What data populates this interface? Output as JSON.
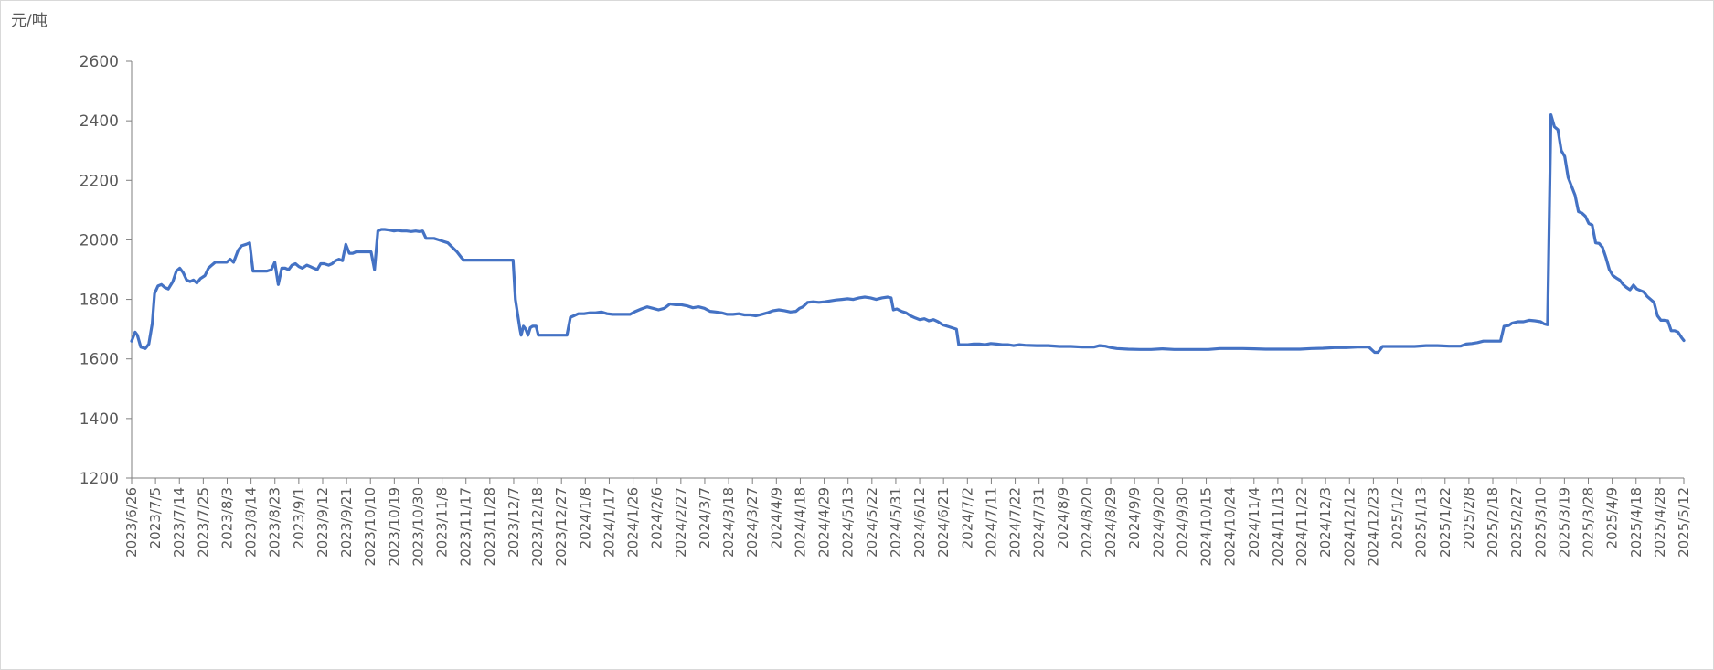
{
  "chart_data": {
    "type": "line",
    "title": "",
    "xlabel": "",
    "ylabel": "",
    "unit_label": "元/吨",
    "ylim": [
      1200,
      2600
    ],
    "yticks": [
      1200,
      1400,
      1600,
      1800,
      2000,
      2200,
      2400,
      2600
    ],
    "grid": false,
    "legend": "none",
    "x_ticks": [
      "2023/6/26",
      "2023/7/5",
      "2023/7/14",
      "2023/7/25",
      "2023/8/3",
      "2023/8/14",
      "2023/8/23",
      "2023/9/1",
      "2023/9/12",
      "2023/9/21",
      "2023/10/10",
      "2023/10/19",
      "2023/10/30",
      "2023/11/8",
      "2023/11/17",
      "2023/11/28",
      "2023/12/7",
      "2023/12/18",
      "2023/12/27",
      "2024/1/8",
      "2024/1/17",
      "2024/1/26",
      "2024/2/6",
      "2024/2/27",
      "2024/3/7",
      "2024/3/18",
      "2024/3/27",
      "2024/4/9",
      "2024/4/18",
      "2024/4/29",
      "2024/5/13",
      "2024/5/22",
      "2024/5/31",
      "2024/6/12",
      "2024/6/21",
      "2024/7/2",
      "2024/7/11",
      "2024/7/22",
      "2024/7/31",
      "2024/8/9",
      "2024/8/20",
      "2024/8/29",
      "2024/9/9",
      "2024/9/20",
      "2024/9/30",
      "2024/10/15",
      "2024/10/24",
      "2024/11/4",
      "2024/11/13",
      "2024/11/22",
      "2024/12/3",
      "2024/12/12",
      "2024/12/23",
      "2025/1/2",
      "2025/1/13",
      "2025/1/22",
      "2025/2/8",
      "2025/2/18",
      "2025/2/27",
      "2025/3/10",
      "2025/3/19",
      "2025/3/28",
      "2025/4/9",
      "2025/4/18",
      "2025/4/28",
      "2025/5/12"
    ],
    "series": [
      {
        "color": "#4472c4",
        "points": [
          [
            0,
            1660
          ],
          [
            0.3,
            1690
          ],
          [
            0.5,
            1680
          ],
          [
            0.8,
            1640
          ],
          [
            1.2,
            1635
          ],
          [
            1.5,
            1650
          ],
          [
            1.8,
            1720
          ],
          [
            2.0,
            1820
          ],
          [
            2.3,
            1845
          ],
          [
            2.6,
            1850
          ],
          [
            2.9,
            1840
          ],
          [
            3.2,
            1835
          ],
          [
            3.6,
            1860
          ],
          [
            3.9,
            1895
          ],
          [
            4.2,
            1905
          ],
          [
            4.5,
            1890
          ],
          [
            4.8,
            1865
          ],
          [
            5.1,
            1860
          ],
          [
            5.4,
            1865
          ],
          [
            5.7,
            1855
          ],
          [
            6.0,
            1870
          ],
          [
            6.4,
            1880
          ],
          [
            6.7,
            1905
          ],
          [
            7.0,
            1915
          ],
          [
            7.3,
            1925
          ],
          [
            7.8,
            1925
          ],
          [
            8.3,
            1925
          ],
          [
            8.6,
            1935
          ],
          [
            8.9,
            1925
          ],
          [
            9.3,
            1965
          ],
          [
            9.6,
            1980
          ],
          [
            10.0,
            1985
          ],
          [
            10.3,
            1990
          ],
          [
            10.6,
            1895
          ],
          [
            11.2,
            1895
          ],
          [
            11.8,
            1895
          ],
          [
            12.2,
            1900
          ],
          [
            12.5,
            1925
          ],
          [
            12.8,
            1850
          ],
          [
            13.1,
            1905
          ],
          [
            13.4,
            1905
          ],
          [
            13.7,
            1900
          ],
          [
            14.0,
            1915
          ],
          [
            14.3,
            1920
          ],
          [
            14.6,
            1910
          ],
          [
            14.9,
            1905
          ],
          [
            15.3,
            1915
          ],
          [
            15.6,
            1910
          ],
          [
            15.9,
            1905
          ],
          [
            16.2,
            1900
          ],
          [
            16.5,
            1920
          ],
          [
            16.8,
            1920
          ],
          [
            17.2,
            1915
          ],
          [
            17.5,
            1920
          ],
          [
            17.8,
            1930
          ],
          [
            18.1,
            1935
          ],
          [
            18.4,
            1930
          ],
          [
            18.7,
            1985
          ],
          [
            19.0,
            1955
          ],
          [
            19.3,
            1955
          ],
          [
            19.6,
            1960
          ],
          [
            20.0,
            1960
          ],
          [
            20.5,
            1960
          ],
          [
            20.9,
            1960
          ],
          [
            21.2,
            1900
          ],
          [
            21.5,
            2030
          ],
          [
            21.8,
            2035
          ],
          [
            22.1,
            2035
          ],
          [
            22.5,
            2033
          ],
          [
            22.9,
            2030
          ],
          [
            23.2,
            2032
          ],
          [
            23.6,
            2030
          ],
          [
            24.0,
            2030
          ],
          [
            24.4,
            2028
          ],
          [
            24.8,
            2030
          ],
          [
            25.1,
            2028
          ],
          [
            25.4,
            2030
          ],
          [
            25.7,
            2005
          ],
          [
            26.0,
            2005
          ],
          [
            26.4,
            2005
          ],
          [
            26.8,
            2000
          ],
          [
            27.2,
            1995
          ],
          [
            27.6,
            1990
          ],
          [
            28.0,
            1975
          ],
          [
            28.4,
            1960
          ],
          [
            28.8,
            1940
          ],
          [
            29.0,
            1932
          ],
          [
            29.5,
            1932
          ],
          [
            30.0,
            1932
          ],
          [
            31.0,
            1932
          ],
          [
            32.0,
            1932
          ],
          [
            33.0,
            1932
          ],
          [
            33.3,
            1932
          ],
          [
            33.5,
            1800
          ],
          [
            33.7,
            1750
          ],
          [
            33.9,
            1700
          ],
          [
            34.0,
            1680
          ],
          [
            34.2,
            1710
          ],
          [
            34.4,
            1700
          ],
          [
            34.6,
            1680
          ],
          [
            34.8,
            1705
          ],
          [
            35.0,
            1710
          ],
          [
            35.3,
            1710
          ],
          [
            35.5,
            1680
          ],
          [
            36.0,
            1680
          ],
          [
            36.5,
            1680
          ],
          [
            37.0,
            1680
          ],
          [
            37.5,
            1680
          ],
          [
            38.0,
            1680
          ],
          [
            38.3,
            1740
          ],
          [
            38.6,
            1745
          ],
          [
            39.0,
            1752
          ],
          [
            39.5,
            1752
          ],
          [
            40.0,
            1755
          ],
          [
            40.5,
            1755
          ],
          [
            41.0,
            1758
          ],
          [
            41.5,
            1752
          ],
          [
            42.0,
            1750
          ],
          [
            42.5,
            1750
          ],
          [
            43.0,
            1750
          ],
          [
            43.5,
            1750
          ],
          [
            44.0,
            1760
          ],
          [
            44.5,
            1768
          ],
          [
            45.0,
            1775
          ],
          [
            45.5,
            1770
          ],
          [
            46.0,
            1765
          ],
          [
            46.5,
            1770
          ],
          [
            47.0,
            1785
          ],
          [
            47.5,
            1782
          ],
          [
            48.0,
            1782
          ],
          [
            48.5,
            1778
          ],
          [
            49.0,
            1772
          ],
          [
            49.5,
            1775
          ],
          [
            50.0,
            1770
          ],
          [
            50.5,
            1760
          ],
          [
            51.0,
            1758
          ],
          [
            51.5,
            1755
          ],
          [
            52.0,
            1750
          ],
          [
            52.5,
            1750
          ],
          [
            53.0,
            1752
          ],
          [
            53.5,
            1748
          ],
          [
            54.0,
            1748
          ],
          [
            54.5,
            1745
          ],
          [
            55.0,
            1750
          ],
          [
            55.5,
            1755
          ],
          [
            56.0,
            1762
          ],
          [
            56.5,
            1765
          ],
          [
            57.0,
            1762
          ],
          [
            57.5,
            1758
          ],
          [
            58.0,
            1760
          ],
          [
            58.3,
            1770
          ],
          [
            58.6,
            1775
          ],
          [
            59.0,
            1790
          ],
          [
            59.5,
            1792
          ],
          [
            60.0,
            1790
          ],
          [
            60.5,
            1792
          ],
          [
            61.0,
            1795
          ],
          [
            61.5,
            1798
          ],
          [
            62.0,
            1800
          ],
          [
            62.5,
            1802
          ],
          [
            63.0,
            1800
          ],
          [
            63.5,
            1805
          ],
          [
            64.0,
            1808
          ],
          [
            64.5,
            1805
          ],
          [
            65.0,
            1800
          ],
          [
            65.5,
            1805
          ],
          [
            66.0,
            1808
          ],
          [
            66.3,
            1805
          ],
          [
            66.5,
            1765
          ],
          [
            66.8,
            1768
          ],
          [
            67.2,
            1760
          ],
          [
            67.6,
            1755
          ],
          [
            68.0,
            1745
          ],
          [
            68.4,
            1738
          ],
          [
            68.8,
            1732
          ],
          [
            69.2,
            1735
          ],
          [
            69.6,
            1728
          ],
          [
            70.0,
            1732
          ],
          [
            70.4,
            1725
          ],
          [
            70.8,
            1715
          ],
          [
            71.2,
            1710
          ],
          [
            71.6,
            1705
          ],
          [
            72.0,
            1700
          ],
          [
            72.2,
            1648
          ],
          [
            72.6,
            1648
          ],
          [
            73.0,
            1648
          ],
          [
            73.5,
            1650
          ],
          [
            74.0,
            1650
          ],
          [
            74.5,
            1648
          ],
          [
            75.0,
            1652
          ],
          [
            75.5,
            1650
          ],
          [
            76.0,
            1648
          ],
          [
            76.5,
            1648
          ],
          [
            77.0,
            1645
          ],
          [
            77.5,
            1648
          ],
          [
            78.0,
            1646
          ],
          [
            79.0,
            1645
          ],
          [
            80.0,
            1645
          ],
          [
            81.0,
            1642
          ],
          [
            82.0,
            1642
          ],
          [
            83.0,
            1640
          ],
          [
            84.0,
            1640
          ],
          [
            84.5,
            1645
          ],
          [
            85.0,
            1643
          ],
          [
            85.5,
            1638
          ],
          [
            86.0,
            1635
          ],
          [
            87.0,
            1633
          ],
          [
            88.0,
            1632
          ],
          [
            89.0,
            1632
          ],
          [
            90.0,
            1634
          ],
          [
            91.0,
            1632
          ],
          [
            92.0,
            1632
          ],
          [
            93.0,
            1632
          ],
          [
            94.0,
            1632
          ],
          [
            95.0,
            1635
          ],
          [
            96.0,
            1635
          ],
          [
            97.0,
            1635
          ],
          [
            98.0,
            1634
          ],
          [
            99.0,
            1633
          ],
          [
            100.0,
            1633
          ],
          [
            101.0,
            1633
          ],
          [
            102.0,
            1633
          ],
          [
            103.0,
            1635
          ],
          [
            104.0,
            1636
          ],
          [
            105.0,
            1638
          ],
          [
            106.0,
            1638
          ],
          [
            107.0,
            1640
          ],
          [
            108.0,
            1640
          ],
          [
            108.5,
            1622
          ],
          [
            108.8,
            1622
          ],
          [
            109.2,
            1642
          ],
          [
            110.0,
            1642
          ],
          [
            111.0,
            1642
          ],
          [
            112.0,
            1642
          ],
          [
            113.0,
            1645
          ],
          [
            114.0,
            1645
          ],
          [
            115.0,
            1643
          ],
          [
            116.0,
            1643
          ],
          [
            116.5,
            1650
          ],
          [
            117.0,
            1652
          ],
          [
            117.5,
            1655
          ],
          [
            118.0,
            1660
          ],
          [
            119.0,
            1660
          ],
          [
            119.5,
            1660
          ],
          [
            119.8,
            1710
          ],
          [
            120.2,
            1712
          ],
          [
            120.5,
            1720
          ],
          [
            121.0,
            1725
          ],
          [
            121.5,
            1725
          ],
          [
            122.0,
            1730
          ],
          [
            122.5,
            1728
          ],
          [
            123.0,
            1725
          ],
          [
            123.3,
            1718
          ],
          [
            123.6,
            1715
          ],
          [
            123.9,
            2420
          ],
          [
            124.2,
            2380
          ],
          [
            124.5,
            2370
          ],
          [
            124.8,
            2300
          ],
          [
            125.1,
            2280
          ],
          [
            125.4,
            2210
          ],
          [
            125.7,
            2180
          ],
          [
            126.0,
            2150
          ],
          [
            126.3,
            2095
          ],
          [
            126.6,
            2090
          ],
          [
            126.9,
            2080
          ],
          [
            127.2,
            2055
          ],
          [
            127.5,
            2050
          ],
          [
            127.8,
            1990
          ],
          [
            128.1,
            1988
          ],
          [
            128.4,
            1975
          ],
          [
            128.7,
            1940
          ],
          [
            129.0,
            1900
          ],
          [
            129.3,
            1880
          ],
          [
            129.6,
            1872
          ],
          [
            129.9,
            1865
          ],
          [
            130.2,
            1850
          ],
          [
            130.5,
            1840
          ],
          [
            130.8,
            1832
          ],
          [
            131.1,
            1848
          ],
          [
            131.4,
            1835
          ],
          [
            131.7,
            1830
          ],
          [
            132.0,
            1825
          ],
          [
            132.3,
            1810
          ],
          [
            132.6,
            1800
          ],
          [
            132.9,
            1790
          ],
          [
            133.2,
            1745
          ],
          [
            133.5,
            1730
          ],
          [
            133.8,
            1730
          ],
          [
            134.1,
            1728
          ],
          [
            134.4,
            1695
          ],
          [
            134.7,
            1695
          ],
          [
            135.0,
            1690
          ],
          [
            135.3,
            1672
          ],
          [
            135.5,
            1662
          ]
        ]
      }
    ]
  }
}
